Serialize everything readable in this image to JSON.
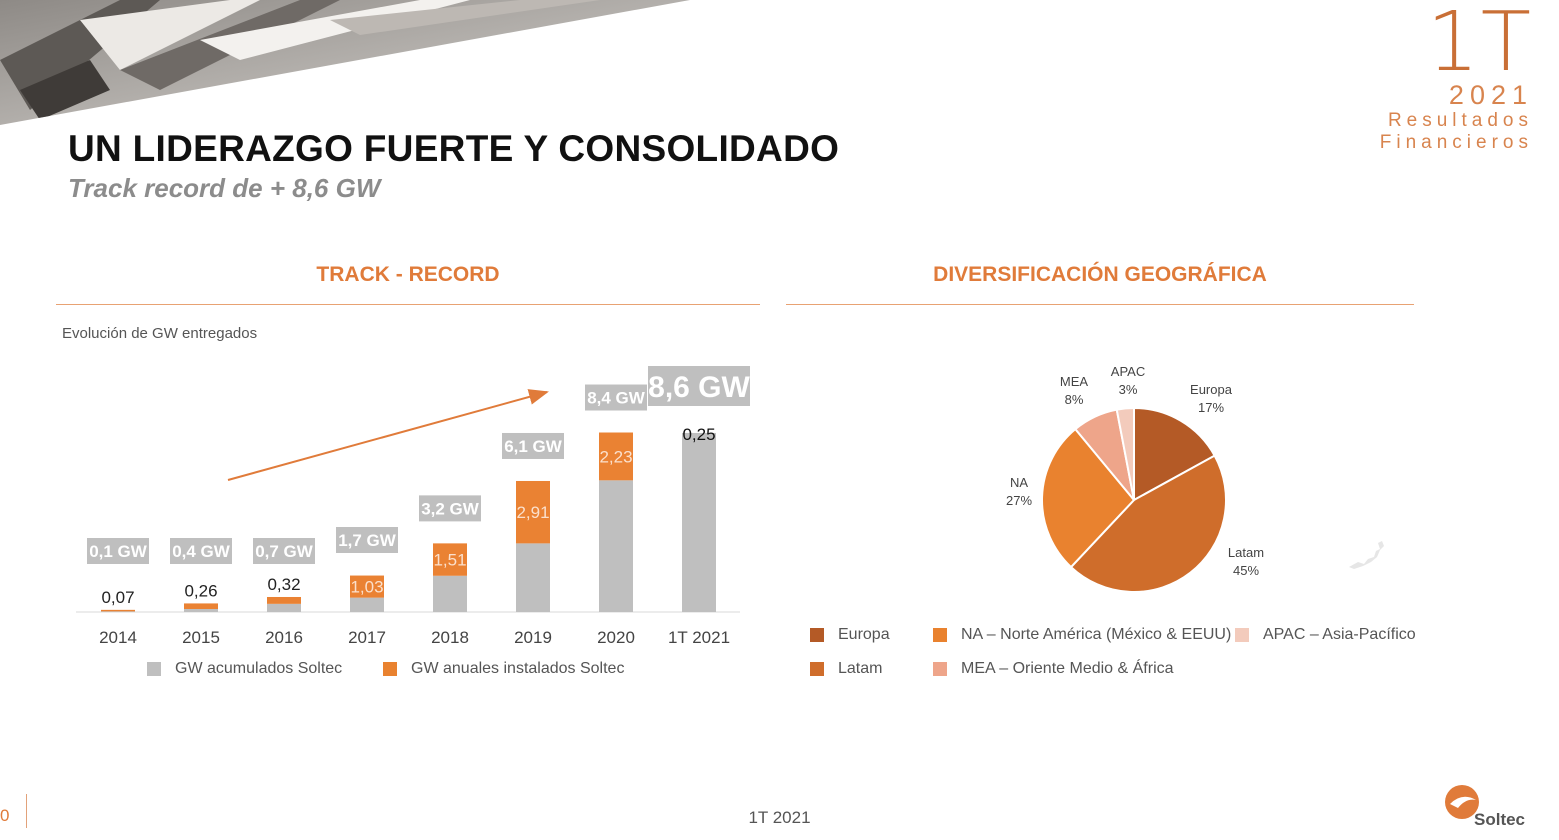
{
  "brand": {
    "quarter": "1T",
    "year": "2021",
    "line1": "Resultados",
    "line2": "Financieros"
  },
  "title": "UN LIDERAZGO FUERTE Y CONSOLIDADO",
  "subtitle": "Track record  de + 8,6 GW",
  "left_section": {
    "heading": "TRACK - RECORD",
    "caption": "Evolución de GW entregados"
  },
  "right_section": {
    "heading": "DIVERSIFICACIÓN GEOGRÁFICA"
  },
  "colors": {
    "accent": "#e07b3a",
    "gray_bar": "#bfbfbf",
    "label_box": "#bfbfbf",
    "europa": "#b45a26",
    "latam": "#cf6d2b",
    "na": "#e9822f",
    "mea": "#eea58a",
    "apac": "#f3cbbc"
  },
  "chart_data": [
    {
      "type": "bar",
      "stacked": true,
      "categories": [
        "2014",
        "2015",
        "2016",
        "2017",
        "2018",
        "2019",
        "2020",
        "1T 2021"
      ],
      "series": [
        {
          "name": "GW acumulados Soltec",
          "values": [
            0.03,
            0.14,
            0.38,
            0.67,
            1.69,
            3.2,
            6.14,
            8.35
          ]
        },
        {
          "name": "GW anuales instalados Soltec",
          "values": [
            0.07,
            0.26,
            0.32,
            1.03,
            1.51,
            2.91,
            2.23,
            0.25
          ]
        }
      ],
      "annual_labels": [
        "0,07",
        "0,26",
        "0,32",
        "1,03",
        "1,51",
        "2,91",
        "2,23",
        "0,25"
      ],
      "total_labels": [
        "0,1 GW",
        "0,4 GW",
        "0,7 GW",
        "1,7 GW",
        "3,2 GW",
        "6,1 GW",
        "8,4 GW",
        "8,6 GW"
      ],
      "ylim": [
        0,
        9
      ],
      "legend": [
        "GW acumulados Soltec",
        "GW anuales instalados Soltec"
      ]
    },
    {
      "type": "pie",
      "labels": [
        "Europa",
        "Latam",
        "NA",
        "MEA",
        "APAC"
      ],
      "values": [
        17,
        45,
        27,
        8,
        3
      ],
      "value_labels": [
        "17%",
        "45%",
        "27%",
        "8%",
        "3%"
      ],
      "legend": [
        "Europa",
        "Latam",
        "NA – Norte América (México  & EEUU)",
        "MEA – Oriente Medio & África",
        "APAC – Asia-Pacífico"
      ]
    }
  ],
  "footer": {
    "text": "1T 2021",
    "page": "0"
  },
  "logo": {
    "name": "Soltec"
  }
}
